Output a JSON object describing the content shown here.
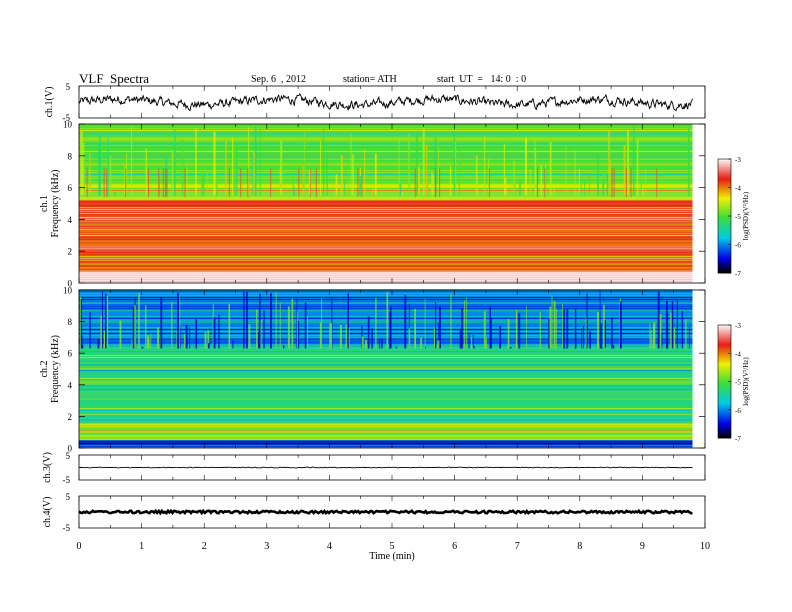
{
  "header": {
    "title": "VLF  Spectra",
    "date": "Sep. 6  , 2012",
    "station": "station= ATH",
    "start_ut": "start  UT  =   14: 0  : 0"
  },
  "chart_data": [
    {
      "type": "line",
      "panel": "ch1-waveform",
      "ylabel": "ch.1(V)",
      "ylim": [
        -5,
        5
      ],
      "yticks": [
        "5",
        "-5"
      ],
      "x_range_min": [
        0,
        9.8
      ],
      "description_of_signal": "noisy trace oscillating roughly between -3 and 3 V"
    },
    {
      "type": "heatmap",
      "panel": "ch1-spectrogram",
      "ylabel": "Frequency  (kHz)",
      "channel_label": "ch.1",
      "ylim": [
        0,
        10
      ],
      "yticks": [
        "0",
        "2",
        "4",
        "6",
        "8",
        "10"
      ],
      "xlim": [
        0,
        9.8
      ],
      "colorbar": {
        "label": "log(PSD)(V²/Hz)",
        "ticks": [
          "-3",
          "-4",
          "-5",
          "-6",
          "-7"
        ],
        "range": [
          -7,
          -3
        ]
      },
      "bands": [
        {
          "from_khz": 0,
          "to_khz": 0.8,
          "level": -3.2
        },
        {
          "from_khz": 0.8,
          "to_khz": 3.5,
          "level": -3.9
        },
        {
          "from_khz": 3.5,
          "to_khz": 5.2,
          "level": -3.8
        },
        {
          "from_khz": 5.2,
          "to_khz": 6.2,
          "level": -4.6
        },
        {
          "from_khz": 6.2,
          "to_khz": 10,
          "level": -5.0
        }
      ]
    },
    {
      "type": "heatmap",
      "panel": "ch2-spectrogram",
      "ylabel": "Frequency  (kHz)",
      "channel_label": "ch.2",
      "ylim": [
        0,
        10
      ],
      "yticks": [
        "0",
        "2",
        "4",
        "6",
        "8",
        "10"
      ],
      "xlim": [
        0,
        9.8
      ],
      "colorbar": {
        "label": "log(PSD)(V²/Hz)",
        "ticks": [
          "-3",
          "-4",
          "-5",
          "-6",
          "-7"
        ],
        "range": [
          -7,
          -3
        ]
      },
      "bands": [
        {
          "from_khz": 0,
          "to_khz": 0.5,
          "level": -6.3
        },
        {
          "from_khz": 0.5,
          "to_khz": 1.5,
          "level": -4.8
        },
        {
          "from_khz": 1.5,
          "to_khz": 6.5,
          "level": -5.3
        },
        {
          "from_khz": 6.5,
          "to_khz": 10,
          "level": -6.0
        }
      ]
    },
    {
      "type": "line",
      "panel": "ch3-waveform",
      "ylabel": "ch.3(V)",
      "ylim": [
        -5,
        5
      ],
      "yticks": [
        "5",
        "-5"
      ],
      "level_v": 0
    },
    {
      "type": "line",
      "panel": "ch4-waveform",
      "ylabel": "ch.4(V)",
      "ylim": [
        -5,
        5
      ],
      "yticks": [
        "5",
        "-5"
      ],
      "level_v": 0
    }
  ],
  "xaxis": {
    "label": "Time  (min)",
    "xlim": [
      0,
      10
    ],
    "ticks": [
      "0",
      "1",
      "2",
      "3",
      "4",
      "5",
      "6",
      "7",
      "8",
      "9",
      "10"
    ]
  },
  "colors": {
    "line": "#000000",
    "background": "#ffffff"
  }
}
